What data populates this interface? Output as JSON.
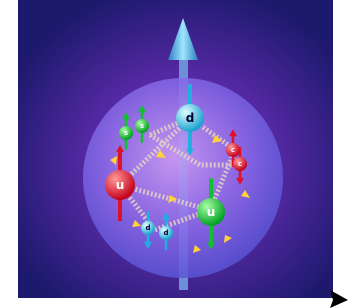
{
  "quarks": [
    {
      "label": "u"
    },
    {
      "label": "u"
    },
    {
      "label": "d"
    },
    {
      "label": "s"
    },
    {
      "label": "s"
    },
    {
      "label": "c"
    },
    {
      "label": "c"
    },
    {
      "label": "d"
    },
    {
      "label": "d"
    }
  ]
}
